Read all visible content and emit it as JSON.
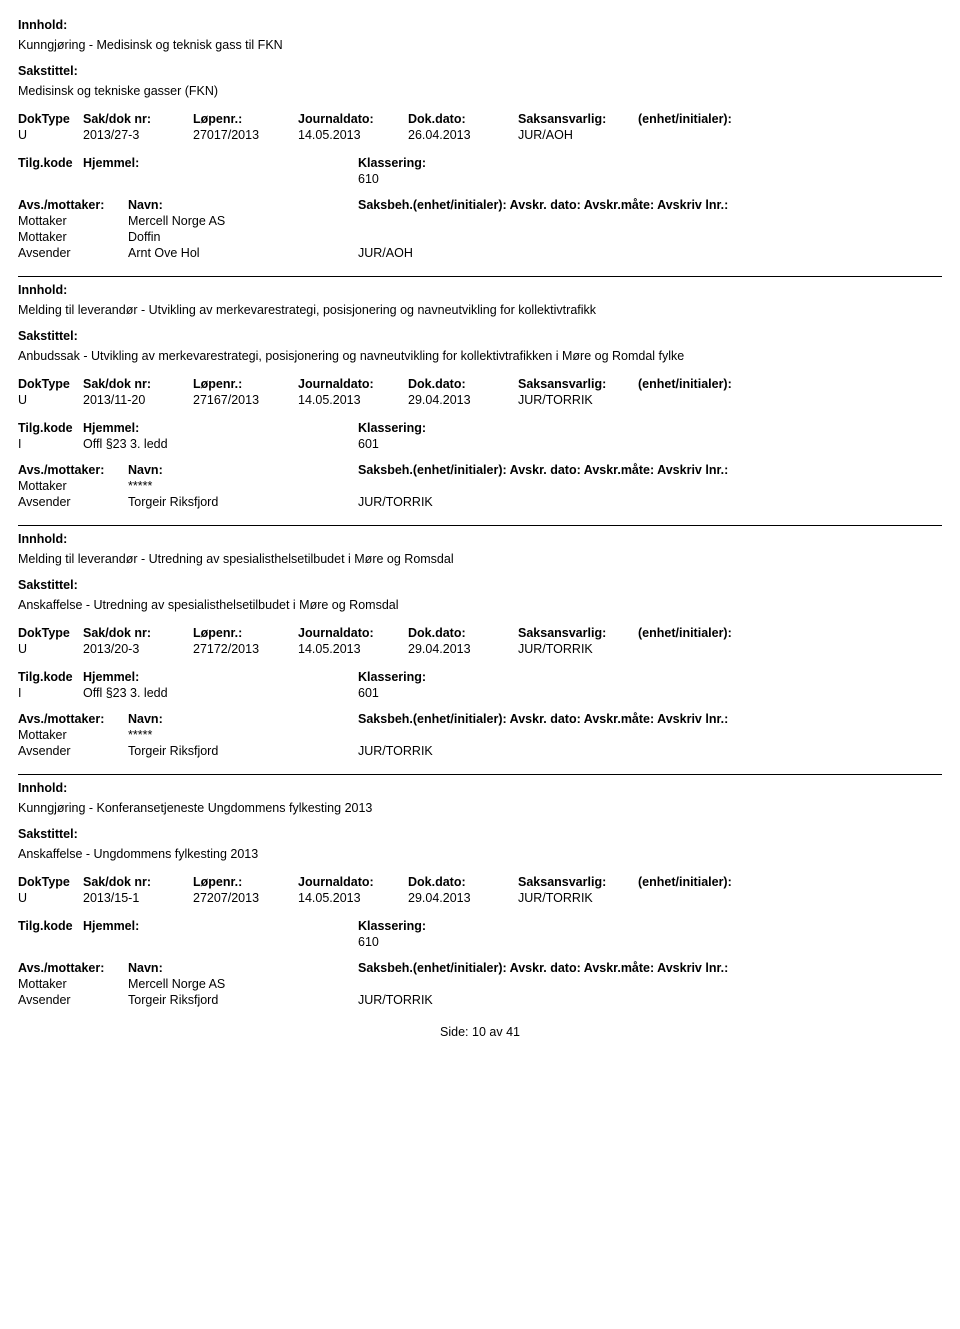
{
  "labels": {
    "innhold": "Innhold:",
    "sakstittel": "Sakstittel:",
    "doktype": "DokType",
    "saknr": "Sak/dok nr:",
    "lopenr": "Løpenr.:",
    "journaldato": "Journaldato:",
    "dokdato": "Dok.dato:",
    "saksansvarlig": "Saksansvarlig:",
    "enhet": "(enhet/initialer):",
    "tilgkode": "Tilg.kode",
    "hjemmel": "Hjemmel:",
    "klassering": "Klassering:",
    "avsmottaker": "Avs./mottaker:",
    "navn": "Navn:",
    "saksbeh_right": "Saksbeh.(enhet/initialer): Avskr. dato: Avskr.måte: Avskriv lnr.:",
    "mottaker": "Mottaker",
    "avsender": "Avsender",
    "side": "Side:",
    "av": "av"
  },
  "records": [
    {
      "innhold": "Kunngjøring - Medisinsk og teknisk gass til FKN",
      "sakstittel": "Medisinsk og tekniske gasser (FKN)",
      "doktype": "U",
      "saknr": "2013/27-3",
      "lopenr": "27017/2013",
      "journaldato": "14.05.2013",
      "dokdato": "26.04.2013",
      "saksansvarlig": "JUR/AOH",
      "tilgkode": "",
      "hjemmel": "",
      "klassering": "610",
      "parties": [
        {
          "role": "Mottaker",
          "navn": "Mercell Norge AS",
          "saksbeh": ""
        },
        {
          "role": "Mottaker",
          "navn": "Doffin",
          "saksbeh": ""
        },
        {
          "role": "Avsender",
          "navn": "Arnt Ove Hol",
          "saksbeh": "JUR/AOH"
        }
      ]
    },
    {
      "innhold": "Melding til leverandør - Utvikling av merkevarestrategi, posisjonering og navneutvikling for kollektivtrafikk",
      "sakstittel": "Anbudssak - Utvikling av merkevarestrategi, posisjonering og navneutvikling for kollektivtrafikken i Møre og Romdal fylke",
      "doktype": "U",
      "saknr": "2013/11-20",
      "lopenr": "27167/2013",
      "journaldato": "14.05.2013",
      "dokdato": "29.04.2013",
      "saksansvarlig": "JUR/TORRIK",
      "tilgkode": "I",
      "hjemmel": "Offl §23 3. ledd",
      "klassering": "601",
      "parties": [
        {
          "role": "Mottaker",
          "navn": "*****",
          "saksbeh": ""
        },
        {
          "role": "Avsender",
          "navn": "Torgeir Riksfjord",
          "saksbeh": "JUR/TORRIK"
        }
      ]
    },
    {
      "innhold": "Melding til leverandør - Utredning av spesialisthelsetilbudet i Møre og Romsdal",
      "sakstittel": "Anskaffelse - Utredning av spesialisthelsetilbudet i Møre og Romsdal",
      "doktype": "U",
      "saknr": "2013/20-3",
      "lopenr": "27172/2013",
      "journaldato": "14.05.2013",
      "dokdato": "29.04.2013",
      "saksansvarlig": "JUR/TORRIK",
      "tilgkode": "I",
      "hjemmel": "Offl §23 3. ledd",
      "klassering": "601",
      "parties": [
        {
          "role": "Mottaker",
          "navn": "*****",
          "saksbeh": ""
        },
        {
          "role": "Avsender",
          "navn": "Torgeir Riksfjord",
          "saksbeh": "JUR/TORRIK"
        }
      ]
    },
    {
      "innhold": "Kunngjøring - Konferansetjeneste Ungdommens fylkesting 2013",
      "sakstittel": "Anskaffelse - Ungdommens fylkesting 2013",
      "doktype": "U",
      "saknr": "2013/15-1",
      "lopenr": "27207/2013",
      "journaldato": "14.05.2013",
      "dokdato": "29.04.2013",
      "saksansvarlig": "JUR/TORRIK",
      "tilgkode": "",
      "hjemmel": "",
      "klassering": "610",
      "parties": [
        {
          "role": "Mottaker",
          "navn": "Mercell Norge AS",
          "saksbeh": ""
        },
        {
          "role": "Avsender",
          "navn": "Torgeir Riksfjord",
          "saksbeh": "JUR/TORRIK"
        }
      ]
    }
  ],
  "footer": {
    "page": "10",
    "total": "41"
  }
}
